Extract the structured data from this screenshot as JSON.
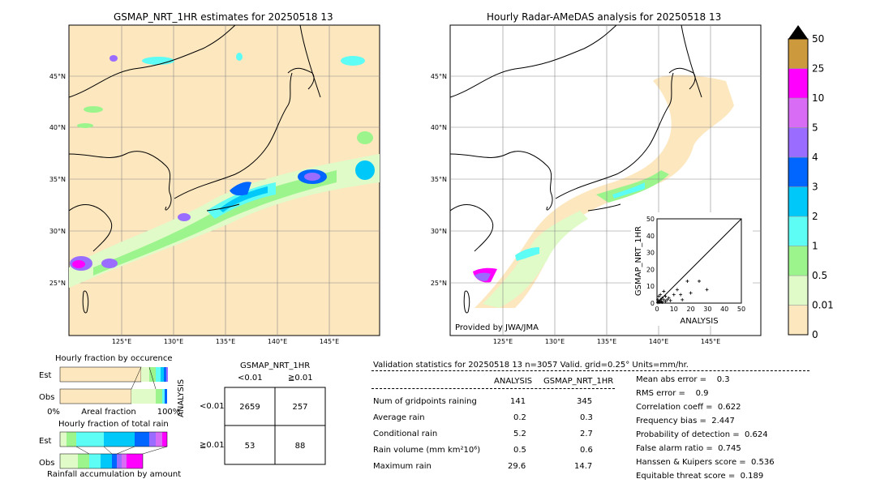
{
  "titles": {
    "left_map": "GSMAP_NRT_1HR estimates for 20250518 13",
    "right_map": "Hourly Radar-AMeDAS analysis for 20250518 13",
    "provided_by": "Provided by JWA/JMA"
  },
  "map_axes": {
    "lat_labels": [
      "45°N",
      "40°N",
      "35°N",
      "30°N",
      "25°N"
    ],
    "lon_labels": [
      "125°E",
      "130°E",
      "135°E",
      "140°E",
      "145°E"
    ]
  },
  "colorbar": {
    "levels": [
      "0",
      "0.01",
      "0.5",
      "1",
      "2",
      "3",
      "4",
      "5",
      "10",
      "25",
      "50"
    ],
    "colors": [
      "#fde7bf",
      "#e0fac8",
      "#9bf58c",
      "#5dfcf4",
      "#00c8f8",
      "#0066ff",
      "#9a6cff",
      "#d86cf4",
      "#ff00ff",
      "#cc9a3d"
    ]
  },
  "scatter": {
    "xlabel": "ANALYSIS",
    "ylabel": "GSMAP_NRT_1HR",
    "ticks": [
      "0",
      "10",
      "20",
      "30",
      "40",
      "50"
    ]
  },
  "fraction_occurrence": {
    "title": "Hourly fraction by occurence",
    "row_labels": [
      "Est",
      "Obs"
    ],
    "axis_left": "0%",
    "axis_mid": "Areal fraction",
    "axis_right": "100%"
  },
  "fraction_total": {
    "title": "Hourly fraction of total rain",
    "row_labels": [
      "Est",
      "Obs"
    ],
    "footer": "Rainfall accumulation by amount"
  },
  "contingency": {
    "title": "GSMAP_NRT_1HR",
    "col_labels": [
      "<0.01",
      "≧0.01"
    ],
    "row_axis": "ANALYSIS",
    "row_labels": [
      "<0.01",
      "≧0.01"
    ],
    "cells": [
      "2659",
      "257",
      "53",
      "88"
    ]
  },
  "validation": {
    "header": "Validation statistics for 20250518 13  n=3057 Valid. grid=0.25° Units=mm/hr.",
    "col_analysis": "ANALYSIS",
    "col_gsmap": "GSMAP_NRT_1HR",
    "rows": [
      {
        "label": "Num of gridpoints raining",
        "analysis": "141",
        "gsmap": "345"
      },
      {
        "label": "Average rain",
        "analysis": "0.2",
        "gsmap": "0.3"
      },
      {
        "label": "Conditional rain",
        "analysis": "5.2",
        "gsmap": "2.7"
      },
      {
        "label": "Rain volume (mm km²10⁶)",
        "analysis": "0.5",
        "gsmap": "0.6"
      },
      {
        "label": "Maximum rain",
        "analysis": "29.6",
        "gsmap": "14.7"
      }
    ],
    "scores": [
      "Mean abs error =    0.3",
      "RMS error =    0.9",
      "Correlation coeff =  0.622",
      "Frequency bias =  2.447",
      "Probability of detection =  0.624",
      "False alarm ratio =  0.745",
      "Hanssen & Kuipers score =  0.536",
      "Equitable threat score =  0.189"
    ]
  },
  "chart_data": [
    {
      "type": "scatter",
      "title": "",
      "xlabel": "ANALYSIS",
      "ylabel": "GSMAP_NRT_1HR",
      "xlim": [
        0,
        50
      ],
      "ylim": [
        0,
        50
      ],
      "points": [
        [
          0.5,
          0.3
        ],
        [
          1,
          1
        ],
        [
          1.5,
          0.5
        ],
        [
          2,
          2
        ],
        [
          2.5,
          1
        ],
        [
          3,
          0.5
        ],
        [
          3,
          3
        ],
        [
          4,
          2
        ],
        [
          5,
          1
        ],
        [
          5,
          4
        ],
        [
          6,
          2
        ],
        [
          7,
          3
        ],
        [
          8,
          1.5
        ],
        [
          10,
          5
        ],
        [
          12,
          8
        ],
        [
          14,
          5
        ],
        [
          15,
          2
        ],
        [
          18,
          13
        ],
        [
          20,
          6
        ],
        [
          25,
          13
        ],
        [
          29.6,
          8
        ],
        [
          1,
          4
        ],
        [
          2,
          5
        ],
        [
          0.5,
          2
        ],
        [
          4,
          7
        ]
      ]
    },
    {
      "type": "table",
      "title": "GSMAP_NRT_1HR",
      "columns": [
        "<0.01",
        "≧0.01"
      ],
      "rows": [
        "<0.01",
        "≧0.01"
      ],
      "values": [
        [
          2659,
          257
        ],
        [
          53,
          88
        ]
      ]
    }
  ]
}
